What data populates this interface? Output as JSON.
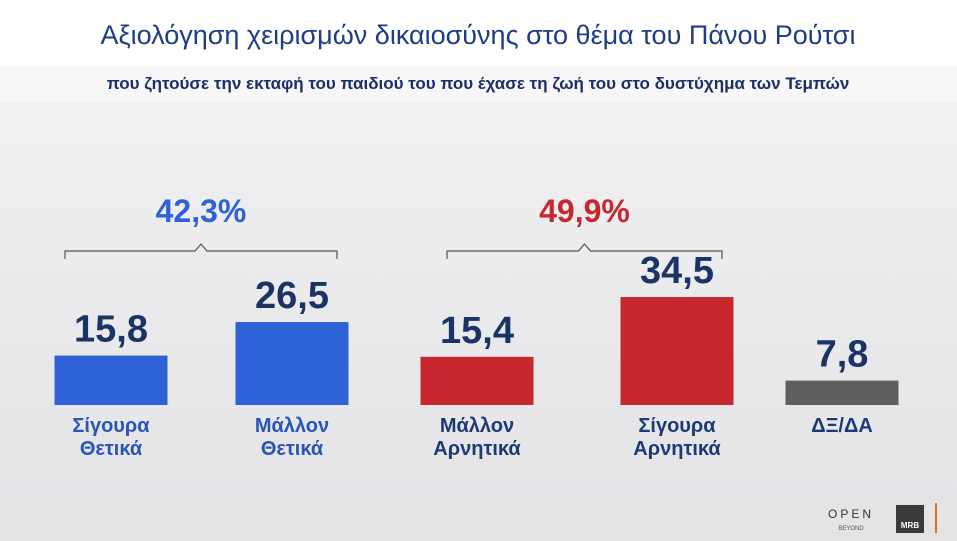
{
  "chart_data": {
    "type": "bar",
    "title": "Αξιολόγηση χειρισμών δικαιοσύνης στο θέμα του Πάνου Ρούτσι",
    "subtitle": "που ζητούσε την εκταφή του παιδιού του που έχασε τη ζωή του στο δυστύχημα των Τεμπών",
    "categories": [
      "Σίγουρα Θετικά",
      "Μάλλον Θετικά",
      "Μάλλον Αρνητικά",
      "Σίγουρα Αρνητικά",
      "ΔΞ/ΔΑ"
    ],
    "values": [
      15.8,
      26.5,
      15.4,
      34.5,
      7.8
    ],
    "value_labels": [
      "15,8",
      "26,5",
      "15,4",
      "34,5",
      "7,8"
    ],
    "colors": [
      "#2e62d6",
      "#2e62d6",
      "#c7282f",
      "#c7282f",
      "#5f5f60"
    ],
    "annotations": [
      {
        "text": "42,3%",
        "color": "#2e62d6"
      },
      {
        "text": "49,9%",
        "color": "#c7282f"
      }
    ],
    "logos": [
      "OPEN",
      "BEYOND",
      "MRB"
    ]
  }
}
